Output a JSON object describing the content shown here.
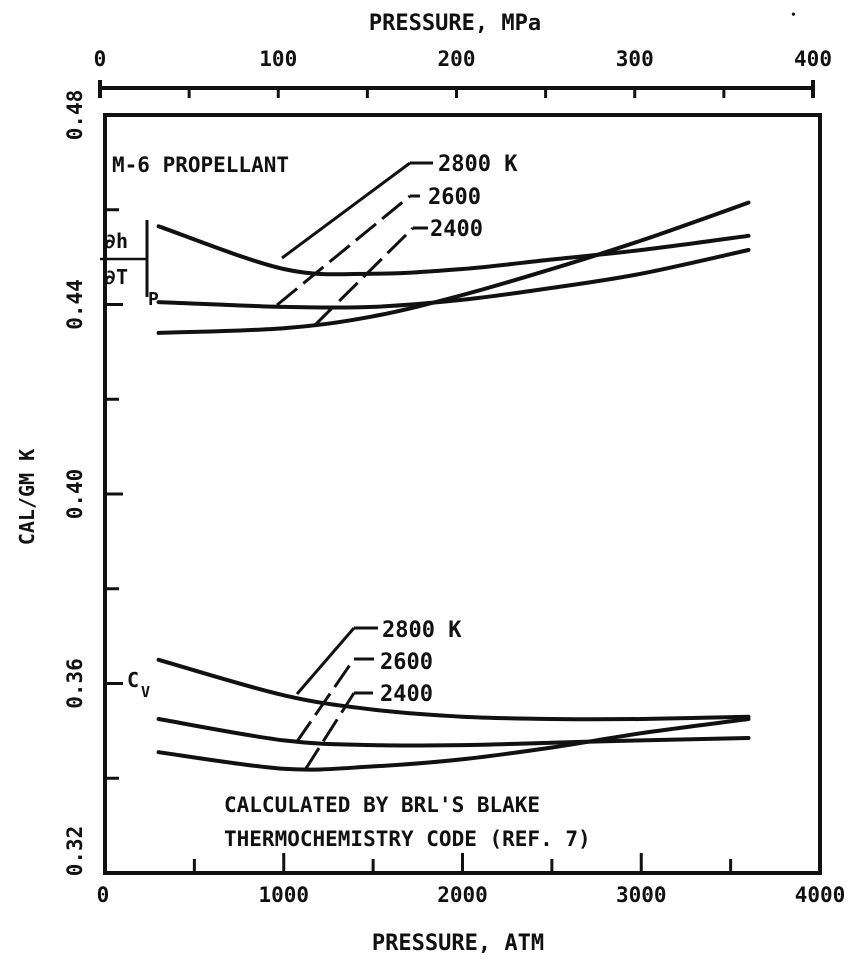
{
  "chart_data": {
    "type": "line",
    "panel_label": "M-6 PROPELLANT",
    "annotation_lines": [
      "CALCULATED BY BRL'S BLAKE",
      "THERMOCHEMISTRY CODE (REF. 7)"
    ],
    "xlabel": "PRESSURE, ATM",
    "x2label": "PRESSURE, MPa",
    "ylabel": "CAL/GM K",
    "xlim": [
      0,
      4000
    ],
    "x2lim": [
      0,
      400
    ],
    "ylim": [
      0.32,
      0.48
    ],
    "xticks": [
      "0",
      "1000",
      "2000",
      "3000",
      "4000"
    ],
    "x2ticks": [
      "0",
      "100",
      "200",
      "300",
      "400"
    ],
    "yticks": [
      "0.32",
      "0.36",
      "0.40",
      "0.44",
      "0.48"
    ],
    "grid": false,
    "groups": [
      {
        "label_top": "∂h",
        "label_bottom": "∂T",
        "subscript": "P",
        "series": [
          {
            "name": "2800 K",
            "x": [
              300,
              1000,
              1500,
              2000,
              2500,
              3000,
              3600
            ],
            "y": [
              0.4565,
              0.4475,
              0.4465,
              0.4475,
              0.4495,
              0.4515,
              0.4545
            ]
          },
          {
            "name": "2600",
            "x": [
              300,
              1000,
              1500,
              2000,
              2500,
              3000,
              3600
            ],
            "y": [
              0.4405,
              0.4395,
              0.4395,
              0.441,
              0.4435,
              0.4465,
              0.4515
            ]
          },
          {
            "name": "2400",
            "x": [
              300,
              1000,
              1500,
              2000,
              2500,
              3000,
              3600
            ],
            "y": [
              0.434,
              0.435,
              0.4375,
              0.442,
              0.4475,
              0.4535,
              0.4615
            ]
          }
        ]
      },
      {
        "label": "C",
        "subscript": "V",
        "series": [
          {
            "name": "2800 K",
            "x": [
              300,
              1000,
              1500,
              2000,
              2500,
              3000,
              3600
            ],
            "y": [
              0.365,
              0.3575,
              0.3545,
              0.353,
              0.3525,
              0.3525,
              0.353
            ]
          },
          {
            "name": "2600",
            "x": [
              300,
              1000,
              1500,
              2000,
              2500,
              3000,
              3600
            ],
            "y": [
              0.3525,
              0.348,
              0.347,
              0.347,
              0.3475,
              0.348,
              0.3485
            ]
          },
          {
            "name": "2400",
            "x": [
              300,
              1000,
              1500,
              2000,
              2500,
              3000,
              3600
            ],
            "y": [
              0.3455,
              0.342,
              0.3425,
              0.344,
              0.3465,
              0.3495,
              0.3525
            ]
          }
        ]
      }
    ]
  }
}
